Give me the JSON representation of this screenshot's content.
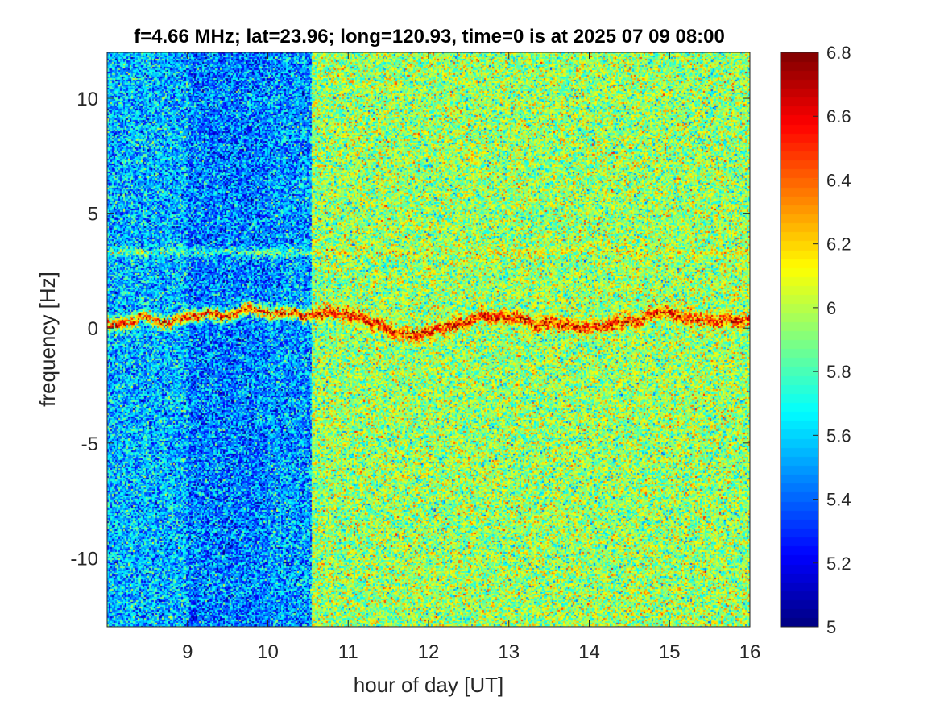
{
  "chart_data": {
    "type": "heatmap",
    "title": "f=4.66 MHz;  lat=23.96; long=120.93, time=0 is at 2025 07 09 08:00",
    "xlabel": "hour of day [UT]",
    "ylabel": "frequency [Hz]",
    "xlim": [
      8,
      16
    ],
    "ylim": [
      -13,
      12
    ],
    "x_ticks": [
      9,
      10,
      11,
      12,
      13,
      14,
      15,
      16
    ],
    "x_tick_labels": [
      "9",
      "10",
      "11",
      "12",
      "13",
      "14",
      "15",
      "16"
    ],
    "y_ticks": [
      10,
      5,
      0,
      -5,
      -10
    ],
    "y_tick_labels": [
      "10",
      "5",
      "0",
      "-5",
      "-10"
    ],
    "colorbar": {
      "colormap": "jet",
      "clim": [
        5,
        6.8
      ],
      "ticks": [
        6.8,
        6.6,
        6.4,
        6.2,
        6,
        5.8,
        5.6,
        5.4,
        5.2,
        5
      ],
      "tick_labels": [
        "6.8",
        "6.6",
        "6.4",
        "6.2",
        "6",
        "5.8",
        "5.6",
        "5.4",
        "5.2",
        "5"
      ],
      "position": "right"
    },
    "regions": [
      {
        "x_range": [
          8,
          9
        ],
        "mean_value": 5.55
      },
      {
        "x_range": [
          9,
          10
        ],
        "mean_value": 5.45
      },
      {
        "x_range": [
          10,
          10.55
        ],
        "mean_value": 5.5
      },
      {
        "x_range": [
          10.55,
          16
        ],
        "mean_value": 5.95
      }
    ],
    "features": [
      {
        "type": "doppler trace",
        "x_range": [
          8,
          16
        ],
        "frequency": 0.3,
        "peak_value": 6.6
      },
      {
        "type": "faint line",
        "x_range": [
          8,
          16
        ],
        "frequency": 3.3,
        "peak_value": 6.2
      }
    ],
    "grid": false
  },
  "colors": {
    "background": "#ffffff",
    "axis": "#262626",
    "text": "#262626",
    "title": "#000000"
  }
}
